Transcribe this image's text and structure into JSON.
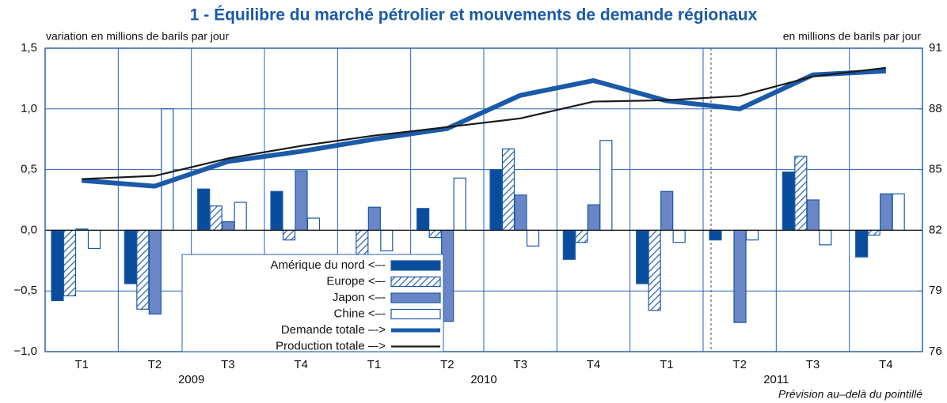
{
  "chart_data": {
    "type": "bar",
    "title": "1 - Équilibre du marché pétrolier et mouvements de demande régionaux",
    "y_axis_label": "variation en millions de barils par jour",
    "y2_axis_label": "en millions de barils par jour",
    "note": "Prévision au–delà du pointillé",
    "categories": [
      "T1",
      "T2",
      "T3",
      "T4",
      "T1",
      "T2",
      "T3",
      "T4",
      "T1",
      "T2",
      "T3",
      "T4"
    ],
    "year_labels": [
      "2009",
      "2010",
      "2011"
    ],
    "series": [
      {
        "name": "Amérique du nord <–-",
        "type": "bar",
        "color": "#0a4c9c",
        "values": [
          -0.58,
          -0.44,
          0.34,
          0.32,
          0,
          0.18,
          0.5,
          -0.24,
          -0.44,
          -0.08,
          0.48,
          -0.22
        ]
      },
      {
        "name": "Europe <–-",
        "type": "bar",
        "color": "#2a62b0",
        "pattern": "hatch",
        "values": [
          -0.54,
          -0.65,
          0.2,
          -0.08,
          -0.21,
          -0.06,
          0.67,
          -0.1,
          -0.66,
          0,
          0.61,
          -0.04
        ]
      },
      {
        "name": "Japon <–-",
        "type": "bar",
        "color": "#6b86c6",
        "values": [
          0.01,
          -0.69,
          0.07,
          0.49,
          0.19,
          -0.75,
          0.29,
          0.21,
          0.32,
          -0.76,
          0.25,
          0.3
        ]
      },
      {
        "name": "Chine <–-",
        "type": "bar",
        "color": "#ffffff",
        "values": [
          -0.15,
          1.0,
          0.23,
          0.1,
          -0.17,
          0.43,
          -0.13,
          0.74,
          -0.1,
          -0.08,
          -0.12,
          0.3
        ]
      },
      {
        "name": "Demande totale –->",
        "type": "line",
        "axis": "y2",
        "color": "#1a5aa8",
        "values": [
          84.46,
          84.18,
          85.4,
          85.9,
          86.5,
          87.03,
          88.67,
          89.4,
          88.4,
          88.0,
          89.68,
          89.87
        ]
      },
      {
        "name": "Production totale –->",
        "type": "line",
        "axis": "y2",
        "color": "#1a1a1a",
        "values": [
          84.53,
          84.69,
          85.55,
          86.17,
          86.68,
          87.1,
          87.53,
          88.36,
          88.43,
          88.64,
          89.6,
          90.03
        ]
      }
    ],
    "ylim": [
      -1.0,
      1.5
    ],
    "yticks": [
      {
        "value": -1.0,
        "label": "−1,0"
      },
      {
        "value": -0.5,
        "label": "−0,5"
      },
      {
        "value": 0,
        "label": "0,0"
      },
      {
        "value": 0.5,
        "label": "0,5"
      },
      {
        "value": 1.0,
        "label": "1,0"
      },
      {
        "value": 1.5,
        "label": "1,5"
      }
    ],
    "y2lim": [
      76,
      91
    ],
    "y2ticks": [
      76,
      79,
      82,
      85,
      88,
      91
    ],
    "grid": true
  }
}
